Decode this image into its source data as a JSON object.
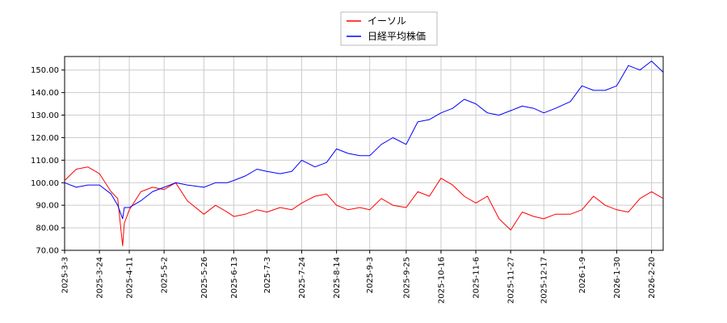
{
  "chart_data": {
    "type": "line",
    "legend": {
      "placement": "top-center"
    },
    "grid": true,
    "ylim": [
      70,
      156
    ],
    "yticks": [
      "70.00",
      "80.00",
      "90.00",
      "100.00",
      "110.00",
      "120.00",
      "130.00",
      "140.00",
      "150.00"
    ],
    "xticks": [
      "2025-3-3",
      "2025-3-24",
      "2025-4-11",
      "2025-5-2",
      "2025-5-26",
      "2025-6-13",
      "2025-7-3",
      "2025-7-24",
      "2025-8-14",
      "2025-9-3",
      "2025-9-25",
      "2025-10-16",
      "2025-11-6",
      "2025-11-27",
      "2025-12-17",
      "2026-1-9",
      "2026-1-30",
      "2026-2-20"
    ],
    "x_dates": [
      "2025-03-03",
      "2025-03-10",
      "2025-03-17",
      "2025-03-24",
      "2025-03-31",
      "2025-04-04",
      "2025-04-07",
      "2025-04-08",
      "2025-04-11",
      "2025-04-18",
      "2025-04-25",
      "2025-05-02",
      "2025-05-09",
      "2025-05-16",
      "2025-05-26",
      "2025-06-02",
      "2025-06-09",
      "2025-06-13",
      "2025-06-20",
      "2025-06-27",
      "2025-07-03",
      "2025-07-11",
      "2025-07-18",
      "2025-07-24",
      "2025-08-01",
      "2025-08-08",
      "2025-08-14",
      "2025-08-21",
      "2025-08-28",
      "2025-09-03",
      "2025-09-10",
      "2025-09-17",
      "2025-09-25",
      "2025-10-02",
      "2025-10-09",
      "2025-10-16",
      "2025-10-23",
      "2025-10-30",
      "2025-11-06",
      "2025-11-13",
      "2025-11-20",
      "2025-11-27",
      "2025-12-04",
      "2025-12-11",
      "2025-12-17",
      "2025-12-24",
      "2026-01-02",
      "2026-01-09",
      "2026-01-16",
      "2026-01-23",
      "2026-01-30",
      "2026-02-06",
      "2026-02-13",
      "2026-02-20",
      "2026-02-27"
    ],
    "series": [
      {
        "name": "イーソル",
        "color": "#ff0000",
        "values": [
          101,
          106,
          107,
          104,
          96,
          93,
          72,
          82,
          88,
          96,
          98,
          97,
          100,
          92,
          86,
          90,
          87,
          85,
          86,
          88,
          87,
          89,
          88,
          91,
          94,
          95,
          90,
          88,
          89,
          88,
          93,
          90,
          89,
          96,
          94,
          102,
          99,
          94,
          91,
          94,
          84,
          79,
          87,
          85,
          84,
          86,
          86,
          88,
          94,
          90,
          88,
          87,
          93,
          96,
          93
        ]
      },
      {
        "name": "日経平均株価",
        "color": "#0000ff",
        "values": [
          100,
          98,
          99,
          99,
          95,
          90,
          84,
          89,
          89,
          92,
          96,
          98,
          100,
          99,
          98,
          100,
          100,
          101,
          103,
          106,
          105,
          104,
          105,
          110,
          107,
          109,
          115,
          113,
          112,
          112,
          117,
          120,
          117,
          127,
          128,
          131,
          133,
          137,
          135,
          131,
          130,
          132,
          134,
          133,
          131,
          133,
          136,
          143,
          141,
          141,
          143,
          152,
          150,
          154,
          149
        ]
      }
    ]
  }
}
